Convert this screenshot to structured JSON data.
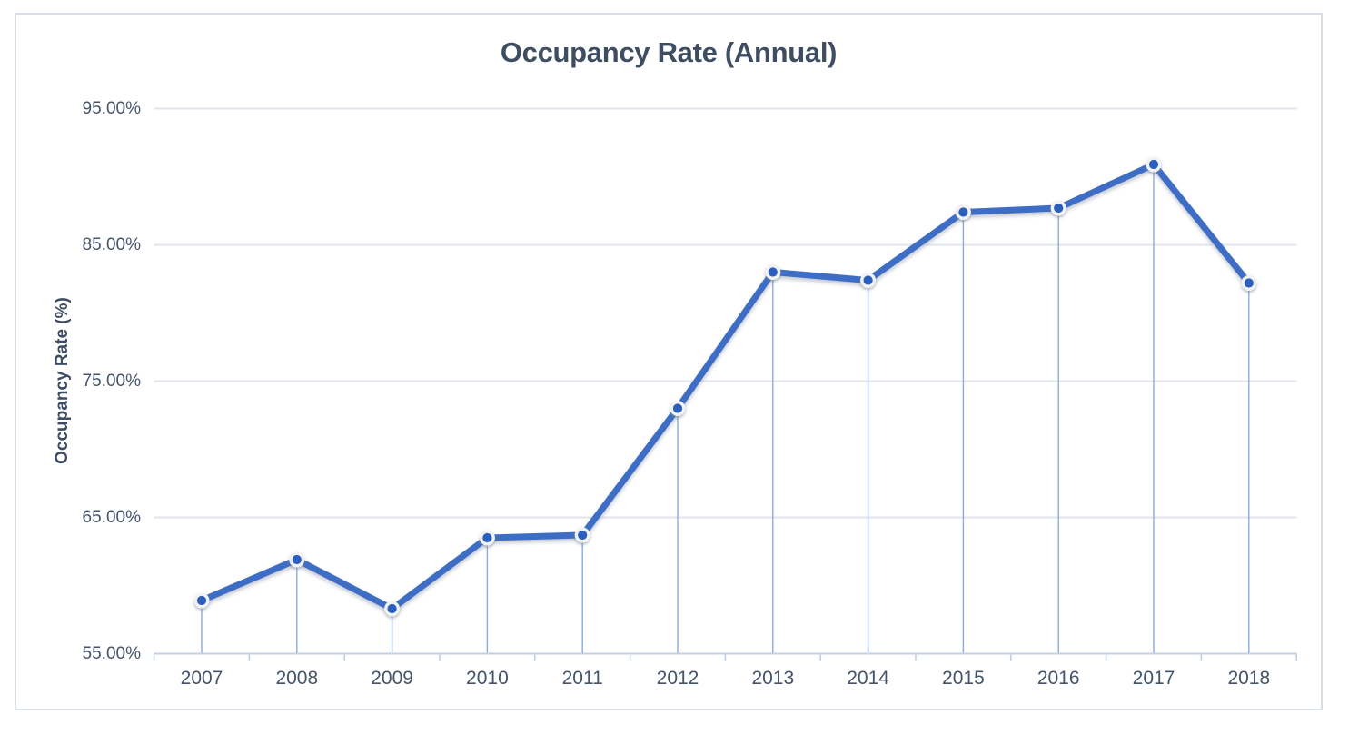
{
  "chart": {
    "title": "Occupancy Rate (Annual)",
    "y_axis_title": "Occupancy Rate (%)",
    "colors": {
      "line": "#3E6DC5",
      "marker_fill": "#2C5FBE",
      "marker_ring": "#F2F2F2",
      "drop_line": "#8AABDC",
      "gridline": "#E0E5EC",
      "axis_line": "#C3D0E4",
      "text": "#44546A",
      "border": "#D8DDE3"
    }
  },
  "chart_data": {
    "type": "line",
    "title": "Occupancy Rate (Annual)",
    "xlabel": "",
    "ylabel": "Occupancy Rate (%)",
    "series_name": "Occupancy Rate",
    "categories": [
      "2007",
      "2008",
      "2009",
      "2010",
      "2011",
      "2012",
      "2013",
      "2014",
      "2015",
      "2016",
      "2017",
      "2018"
    ],
    "values": [
      58.9,
      61.9,
      58.3,
      63.5,
      63.7,
      73.0,
      83.0,
      82.4,
      87.4,
      87.7,
      90.9,
      82.2
    ],
    "ylim": [
      55,
      95
    ],
    "y_ticks": [
      {
        "value": 95,
        "label": "95.00%"
      },
      {
        "value": 85,
        "label": "85.00%"
      },
      {
        "value": 75,
        "label": "75.00%"
      },
      {
        "value": 65,
        "label": "65.00%"
      },
      {
        "value": 55,
        "label": "55.00%"
      }
    ],
    "grid": true,
    "legend": false,
    "marker": "circle",
    "drop_lines": true
  }
}
